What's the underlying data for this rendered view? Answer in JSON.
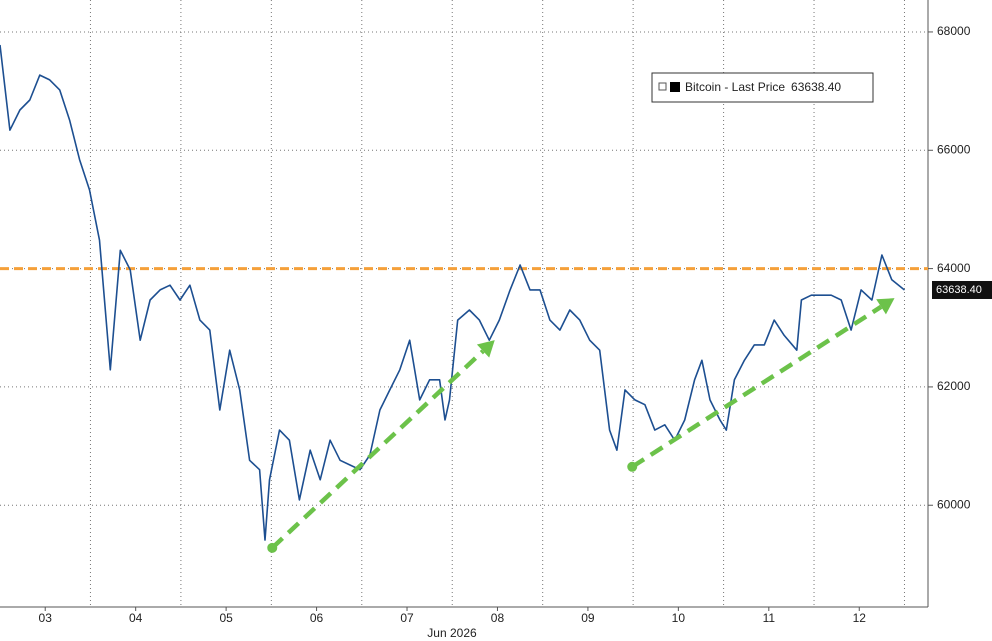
{
  "chart_data": {
    "type": "line",
    "series": [
      {
        "name": "Bitcoin - Last Price",
        "color": "#1d4f91",
        "x": [
          3.0,
          3.11,
          3.22,
          3.33,
          3.44,
          3.55,
          3.66,
          3.77,
          3.88,
          3.99,
          4.1,
          4.22,
          4.33,
          4.44,
          4.55,
          4.66,
          4.77,
          4.88,
          4.99,
          5.1,
          5.21,
          5.32,
          5.43,
          5.54,
          5.65,
          5.76,
          5.87,
          5.93,
          5.98,
          6.09,
          6.2,
          6.31,
          6.43,
          6.54,
          6.65,
          6.76,
          6.87,
          6.98,
          7.09,
          7.2,
          7.31,
          7.42,
          7.53,
          7.64,
          7.75,
          7.86,
          7.92,
          7.97,
          8.06,
          8.19,
          8.3,
          8.41,
          8.52,
          8.64,
          8.75,
          8.86,
          8.97,
          9.08,
          9.19,
          9.3,
          9.41,
          9.52,
          9.63,
          9.74,
          9.82,
          9.91,
          10.02,
          10.13,
          10.24,
          10.35,
          10.46,
          10.57,
          10.68,
          10.76,
          10.85,
          10.96,
          11.03,
          11.12,
          11.23,
          11.34,
          11.45,
          11.56,
          11.67,
          11.81,
          11.86,
          11.97,
          12.08,
          12.19,
          12.3,
          12.41,
          12.52,
          12.64,
          12.75,
          12.86,
          13.0
        ],
        "values": [
          67780,
          66340,
          66680,
          66850,
          67270,
          67190,
          67020,
          66510,
          65840,
          65330,
          64480,
          62290,
          64310,
          63980,
          62790,
          63470,
          63640,
          63720,
          63470,
          63720,
          63130,
          62960,
          61610,
          62620,
          61950,
          60760,
          60600,
          59410,
          60430,
          61270,
          61100,
          60090,
          60930,
          60430,
          61100,
          60760,
          60680,
          60600,
          60850,
          61610,
          61950,
          62290,
          62790,
          61780,
          62120,
          62120,
          61440,
          61780,
          63130,
          63300,
          63130,
          62790,
          63130,
          63640,
          64060,
          63640,
          63640,
          63130,
          62960,
          63300,
          63130,
          62790,
          62620,
          61270,
          60930,
          61950,
          61780,
          61700,
          61270,
          61360,
          61100,
          61440,
          62120,
          62450,
          61780,
          61440,
          61270,
          62120,
          62450,
          62710,
          62710,
          63130,
          62870,
          62620,
          63470,
          63550,
          63550,
          63550,
          63470,
          62960,
          63640,
          63470,
          64230,
          63810,
          63638.4
        ],
        "last_label": "63638.40"
      }
    ],
    "xlim": [
      3,
      13.26
    ],
    "ylim": [
      58280,
      68540
    ],
    "xticks": [
      {
        "value": 3.5,
        "label": "03"
      },
      {
        "value": 4.5,
        "label": "04"
      },
      {
        "value": 5.5,
        "label": "05"
      },
      {
        "value": 6.5,
        "label": "06"
      },
      {
        "value": 7.5,
        "label": "07"
      },
      {
        "value": 8.5,
        "label": "08"
      },
      {
        "value": 9.5,
        "label": "09"
      },
      {
        "value": 10.5,
        "label": "10"
      },
      {
        "value": 11.5,
        "label": "11"
      },
      {
        "value": 12.5,
        "label": "12"
      }
    ],
    "xgrid": [
      4,
      5,
      6,
      7,
      8,
      9,
      10,
      11,
      12,
      13
    ],
    "yticks": [
      60000,
      62000,
      64000,
      66000,
      68000
    ],
    "xlabel": "Jun 2026",
    "hline": {
      "value": 64000,
      "color": "#f5a03a"
    },
    "trend_arrows": [
      {
        "from": [
          6.01,
          59280
        ],
        "to": [
          8.47,
          62790
        ],
        "color": "#6cc24a"
      },
      {
        "from": [
          9.99,
          60650
        ],
        "to": [
          12.89,
          63500
        ],
        "color": "#6cc24a"
      }
    ],
    "grid": true
  }
}
